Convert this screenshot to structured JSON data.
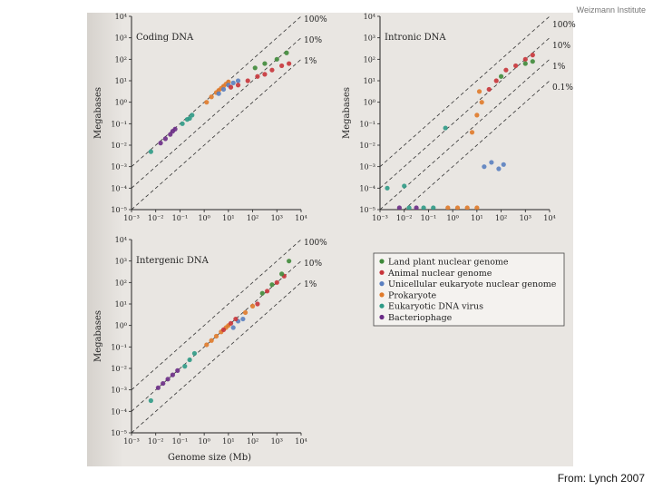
{
  "header": {
    "institute": "Weizmann Institute"
  },
  "footer": {
    "credit": "From: Lynch 2007"
  },
  "colors": {
    "land_plant": "#3f8a3a",
    "animal": "#c8343a",
    "unicellular": "#5a7fc0",
    "prokaryote": "#e07a2a",
    "virus": "#2f9a86",
    "phage": "#6a2b86",
    "intron_cluster": "#9a4a1e",
    "line": "#333333"
  },
  "shared": {
    "x_tick_labels": [
      "10⁻³",
      "10⁻²",
      "10⁻¹",
      "10⁰",
      "10¹",
      "10²",
      "10³",
      "10⁴"
    ],
    "x_axis_label": "Genome size (Mb)"
  },
  "legend": {
    "items": [
      {
        "label": "Land plant nuclear genome",
        "color": "#3f8a3a"
      },
      {
        "label": "Animal nuclear genome",
        "color": "#c8343a"
      },
      {
        "label": "Unicellular eukaryote nuclear genome",
        "color": "#5a7fc0"
      },
      {
        "label": "Prokaryote",
        "color": "#e07a2a"
      },
      {
        "label": "Eukaryotic DNA virus",
        "color": "#2f9a86"
      },
      {
        "label": "Bacteriophage",
        "color": "#6a2b86"
      }
    ]
  },
  "chart_data": [
    {
      "type": "scatter",
      "title": "Coding DNA",
      "xlabel": "",
      "ylabel": "Megabases",
      "xlim": [
        -3,
        4
      ],
      "ylim": [
        -5,
        4
      ],
      "log_axes": true,
      "x_ticks": [
        "10⁻³",
        "10⁻²",
        "10⁻¹",
        "10⁰",
        "10¹",
        "10²",
        "10³",
        "10⁴"
      ],
      "y_ticks": [
        "10⁻⁵",
        "10⁻⁴",
        "10⁻³",
        "10⁻²",
        "10⁻¹",
        "10⁰",
        "10¹",
        "10²",
        "10³",
        "10⁴"
      ],
      "reference_lines": [
        {
          "label": "100%",
          "offset": 0
        },
        {
          "label": "10%",
          "offset": -1
        },
        {
          "label": "1%",
          "offset": -2
        }
      ],
      "series": [
        {
          "name": "Bacteriophage",
          "points": [
            [
              -1.8,
              -1.9
            ],
            [
              -1.6,
              -1.7
            ],
            [
              -1.4,
              -1.5
            ],
            [
              -1.3,
              -1.35
            ],
            [
              -1.2,
              -1.25
            ]
          ]
        },
        {
          "name": "Eukaryotic DNA virus",
          "points": [
            [
              -2.2,
              -2.3
            ],
            [
              -0.9,
              -1.0
            ],
            [
              -0.7,
              -0.8
            ],
            [
              -0.6,
              -0.75
            ],
            [
              -0.5,
              -0.6
            ]
          ]
        },
        {
          "name": "Prokaryote",
          "points": [
            [
              0.1,
              0.0
            ],
            [
              0.3,
              0.25
            ],
            [
              0.5,
              0.45
            ],
            [
              0.6,
              0.55
            ],
            [
              0.7,
              0.65
            ],
            [
              0.8,
              0.75
            ],
            [
              0.9,
              0.85
            ],
            [
              1.0,
              0.95
            ]
          ]
        },
        {
          "name": "Unicellular eukaryote nuclear genome",
          "points": [
            [
              0.6,
              0.4
            ],
            [
              0.8,
              0.6
            ],
            [
              1.0,
              0.8
            ],
            [
              1.2,
              0.9
            ],
            [
              1.4,
              1.0
            ]
          ]
        },
        {
          "name": "Animal nuclear genome",
          "points": [
            [
              1.1,
              0.7
            ],
            [
              1.4,
              0.8
            ],
            [
              1.8,
              1.0
            ],
            [
              2.2,
              1.2
            ],
            [
              2.5,
              1.3
            ],
            [
              2.8,
              1.5
            ],
            [
              3.2,
              1.7
            ],
            [
              3.5,
              1.8
            ]
          ]
        },
        {
          "name": "Land plant nuclear genome",
          "points": [
            [
              2.1,
              1.6
            ],
            [
              2.5,
              1.8
            ],
            [
              3.0,
              2.0
            ],
            [
              3.4,
              2.3
            ]
          ]
        }
      ]
    },
    {
      "type": "scatter",
      "title": "Intronic DNA",
      "xlabel": "",
      "ylabel": "Megabases",
      "xlim": [
        -3,
        4
      ],
      "ylim": [
        -5,
        4
      ],
      "log_axes": true,
      "x_ticks": [
        "10⁻³",
        "10⁻²",
        "10⁻¹",
        "10⁰",
        "10¹",
        "10²",
        "10³",
        "10⁴"
      ],
      "y_ticks": [
        "10⁻⁵",
        "10⁻⁴",
        "10⁻³",
        "10⁻²",
        "10⁻¹",
        "10⁰",
        "10¹",
        "10²",
        "10³",
        "10⁴"
      ],
      "reference_lines": [
        {
          "label": "100%",
          "offset": 0
        },
        {
          "label": "10%",
          "offset": -1
        },
        {
          "label": "1%",
          "offset": -2
        },
        {
          "label": "0.1%",
          "offset": -3
        }
      ],
      "series": [
        {
          "name": "Bacteriophage",
          "points": [
            [
              -2.2,
              -5.0
            ],
            [
              -1.5,
              -5.0
            ]
          ]
        },
        {
          "name": "Eukaryotic DNA virus",
          "points": [
            [
              -2.7,
              -4.0
            ],
            [
              -2.0,
              -3.9
            ],
            [
              -1.8,
              -5.0
            ],
            [
              -1.2,
              -5.0
            ],
            [
              -0.8,
              -5.0
            ],
            [
              -0.3,
              -1.2
            ]
          ]
        },
        {
          "name": "Prokaryote",
          "points": [
            [
              -0.2,
              -5.0
            ],
            [
              0.2,
              -5.0
            ],
            [
              0.6,
              -5.0
            ],
            [
              1.0,
              -5.0
            ],
            [
              0.8,
              -1.4
            ],
            [
              1.0,
              -0.6
            ],
            [
              1.2,
              0.0
            ],
            [
              1.1,
              0.5
            ]
          ]
        },
        {
          "name": "Unicellular eukaryote nuclear genome",
          "points": [
            [
              1.3,
              -3.0
            ],
            [
              1.6,
              -2.8
            ],
            [
              1.9,
              -3.1
            ],
            [
              2.1,
              -2.9
            ]
          ]
        },
        {
          "name": "Animal nuclear genome",
          "points": [
            [
              1.5,
              0.6
            ],
            [
              1.8,
              1.0
            ],
            [
              2.2,
              1.5
            ],
            [
              2.6,
              1.7
            ],
            [
              3.0,
              2.0
            ],
            [
              3.3,
              2.2
            ]
          ]
        },
        {
          "name": "Land plant nuclear genome",
          "points": [
            [
              2.0,
              1.2
            ],
            [
              3.0,
              1.8
            ],
            [
              3.3,
              1.9
            ]
          ]
        }
      ]
    },
    {
      "type": "scatter",
      "title": "Intergenic DNA",
      "xlabel": "Genome size (Mb)",
      "ylabel": "Megabases",
      "xlim": [
        -3,
        4
      ],
      "ylim": [
        -5,
        4
      ],
      "log_axes": true,
      "x_ticks": [
        "10⁻³",
        "10⁻²",
        "10⁻¹",
        "10⁰",
        "10¹",
        "10²",
        "10³",
        "10⁴"
      ],
      "y_ticks": [
        "10⁻⁵",
        "10⁻⁴",
        "10⁻³",
        "10⁻²",
        "10⁻¹",
        "10⁰",
        "10¹",
        "10²",
        "10³",
        "10⁴"
      ],
      "reference_lines": [
        {
          "label": "100%",
          "offset": 0
        },
        {
          "label": "10%",
          "offset": -1
        },
        {
          "label": "1%",
          "offset": -2
        }
      ],
      "series": [
        {
          "name": "Bacteriophage",
          "points": [
            [
              -1.9,
              -2.9
            ],
            [
              -1.7,
              -2.7
            ],
            [
              -1.5,
              -2.5
            ],
            [
              -1.3,
              -2.3
            ],
            [
              -1.1,
              -2.1
            ]
          ]
        },
        {
          "name": "Eukaryotic DNA virus",
          "points": [
            [
              -2.2,
              -3.5
            ],
            [
              -0.8,
              -1.9
            ],
            [
              -0.6,
              -1.6
            ],
            [
              -0.4,
              -1.3
            ]
          ]
        },
        {
          "name": "Prokaryote",
          "points": [
            [
              0.1,
              -0.9
            ],
            [
              0.3,
              -0.7
            ],
            [
              0.5,
              -0.5
            ],
            [
              0.7,
              -0.3
            ],
            [
              0.9,
              -0.1
            ],
            [
              1.0,
              0.0
            ],
            [
              1.7,
              0.6
            ],
            [
              2.0,
              0.9
            ]
          ]
        },
        {
          "name": "Unicellular eukaryote nuclear genome",
          "points": [
            [
              1.2,
              -0.1
            ],
            [
              1.4,
              0.2
            ],
            [
              1.6,
              0.3
            ]
          ]
        },
        {
          "name": "Animal nuclear genome",
          "points": [
            [
              0.8,
              -0.2
            ],
            [
              1.1,
              0.1
            ],
            [
              1.3,
              0.3
            ],
            [
              2.2,
              1.0
            ],
            [
              2.6,
              1.6
            ],
            [
              3.0,
              2.0
            ],
            [
              3.3,
              2.3
            ]
          ]
        },
        {
          "name": "Land plant nuclear genome",
          "points": [
            [
              2.4,
              1.5
            ],
            [
              2.8,
              1.9
            ],
            [
              3.2,
              2.4
            ],
            [
              3.5,
              3.0
            ]
          ]
        }
      ]
    }
  ]
}
